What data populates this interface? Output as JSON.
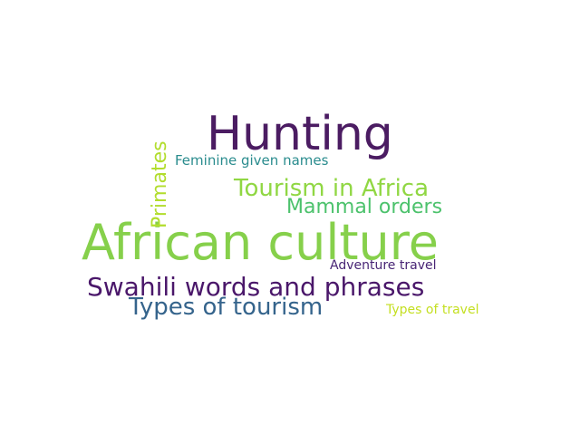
{
  "words": [
    {
      "text": "Hunting",
      "color": "#4b1c62"
    },
    {
      "text": "African culture",
      "color": "#86d04b"
    },
    {
      "text": "Swahili words and phrases",
      "color": "#4a176a"
    },
    {
      "text": "Types of tourism",
      "color": "#35648c"
    },
    {
      "text": "Tourism in Africa",
      "color": "#90d743"
    },
    {
      "text": "Mammal orders",
      "color": "#4cc26c"
    },
    {
      "text": "Primates",
      "color": "#b2dd2d"
    },
    {
      "text": "Feminine given names",
      "color": "#2a8c8e"
    },
    {
      "text": "Adventure travel",
      "color": "#482575"
    },
    {
      "text": "Types of travel",
      "color": "#c4df21"
    }
  ]
}
